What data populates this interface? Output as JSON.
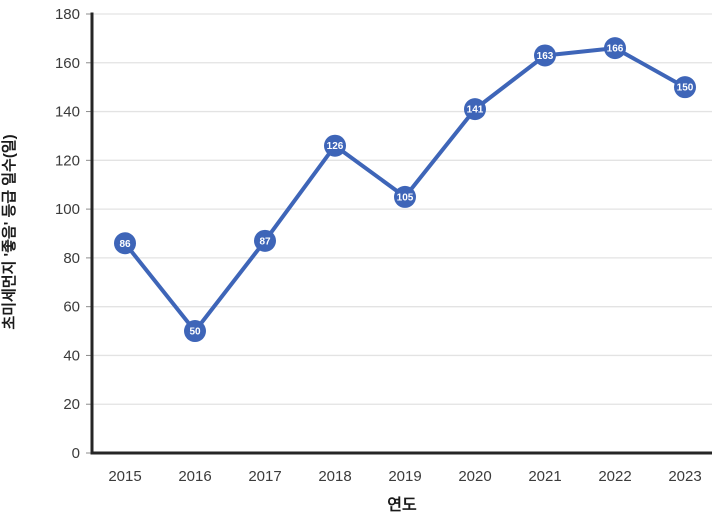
{
  "chart_data": {
    "type": "line",
    "title": "",
    "categories": [
      "2015",
      "2016",
      "2017",
      "2018",
      "2019",
      "2020",
      "2021",
      "2022",
      "2023"
    ],
    "series": [
      {
        "name": "초미세먼지 '좋음' 등급 일수",
        "values": [
          86,
          50,
          87,
          126,
          105,
          141,
          163,
          166,
          150
        ]
      }
    ],
    "xlabel": "연도",
    "ylabel": "초미세먼지 '좋음' 등급 일수(일)",
    "ylim": [
      0,
      180
    ],
    "ytick_step": 20,
    "y_ticks": [
      0,
      20,
      40,
      60,
      80,
      100,
      120,
      140,
      160,
      180
    ],
    "grid": true,
    "legend": false,
    "data_labels": true,
    "colors": {
      "line": "#3E65B8",
      "marker": "#3E65B8",
      "marker_label": "#FFFFFF",
      "grid": "#E3E3E3",
      "axis": "#262626",
      "tick": "#8C8C8C",
      "tick_label": "#3B3B3B",
      "axis_title": "#1A1A1A"
    }
  }
}
